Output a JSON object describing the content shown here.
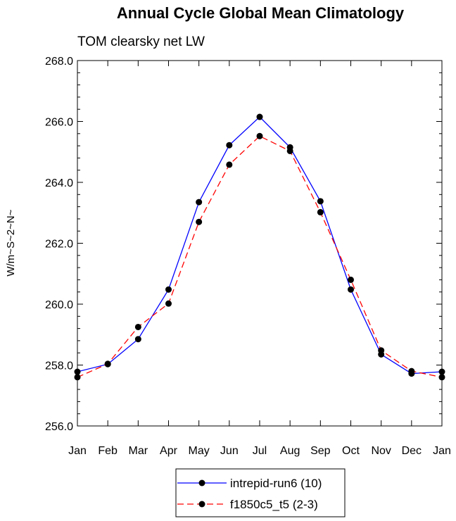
{
  "chart_data": {
    "type": "line",
    "title": "Annual Cycle Global Mean Climatology",
    "subtitle": "TOM clearsky net LW",
    "ylabel": "W/m~S~2~N~",
    "xlabel": "",
    "ylim": [
      256.0,
      268.0
    ],
    "y_ticks": [
      "256.0",
      "258.0",
      "260.0",
      "262.0",
      "264.0",
      "266.0",
      "268.0"
    ],
    "categories": [
      "Jan",
      "Feb",
      "Mar",
      "Apr",
      "May",
      "Jun",
      "Jul",
      "Aug",
      "Sep",
      "Oct",
      "Nov",
      "Dec",
      "Jan"
    ],
    "series": [
      {
        "name": "intrepid-run6 (10)",
        "color": "#0000ff",
        "dash": "solid",
        "marker": "filled-circle",
        "values": [
          257.78,
          258.03,
          258.85,
          260.48,
          263.35,
          265.22,
          266.15,
          265.15,
          263.38,
          260.48,
          258.35,
          257.72,
          257.78
        ]
      },
      {
        "name": "f1850c5_t5 (2-3)",
        "color": "#ff0000",
        "dash": "dashed",
        "marker": "filled-circle",
        "values": [
          257.6,
          258.04,
          259.25,
          260.02,
          262.7,
          264.58,
          265.52,
          265.03,
          263.02,
          260.8,
          258.48,
          257.8,
          257.6
        ]
      }
    ],
    "grid": false,
    "legend_position": "bottom-center"
  }
}
